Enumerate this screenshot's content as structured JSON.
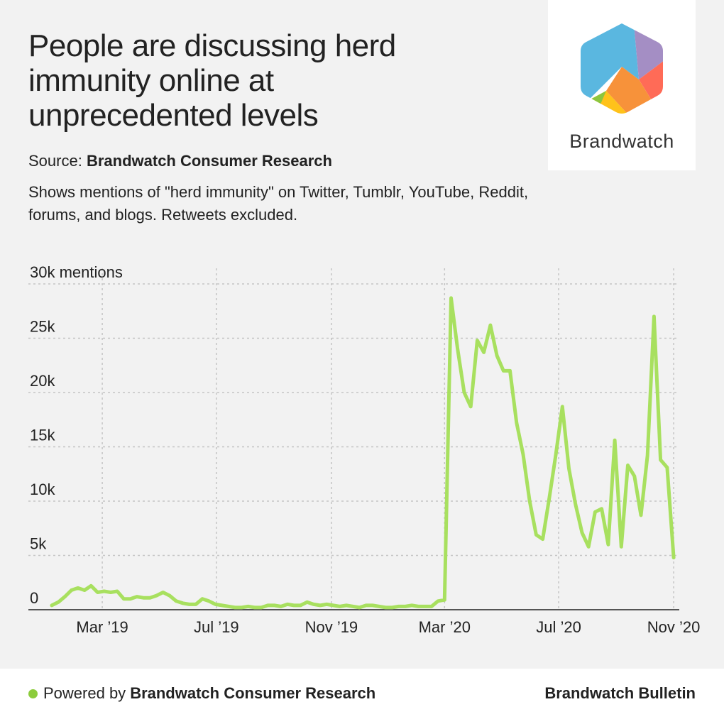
{
  "header": {
    "title": "People are discussing herd immunity online at unprecedented levels",
    "source_label": "Source:",
    "source_name": "Brandwatch Consumer Research",
    "subtitle": "Shows mentions of \"herd immunity\" on Twitter, Tumblr, YouTube, Reddit, forums, and blogs. Retweets excluded."
  },
  "logo": {
    "name": "Brandwatch",
    "colors": [
      "#5ab7e0",
      "#a48ec4",
      "#ff6b57",
      "#f7923a",
      "#ffc21a",
      "#8cc63e"
    ]
  },
  "footer": {
    "powered_label": "Powered by",
    "powered_name": "Brandwatch Consumer Research",
    "right_label": "Brandwatch Bulletin",
    "dot_color": "#8ccc3c"
  },
  "chart_data": {
    "type": "line",
    "line_color": "#a8e05f",
    "y_unit_label": "30k mentions",
    "y_ticks": [
      {
        "value": 0,
        "label": "0"
      },
      {
        "value": 5000,
        "label": "5k"
      },
      {
        "value": 10000,
        "label": "10k"
      },
      {
        "value": 15000,
        "label": "15k"
      },
      {
        "value": 20000,
        "label": "20k"
      },
      {
        "value": 25000,
        "label": "25k"
      },
      {
        "value": 30000,
        "label": "30k"
      }
    ],
    "ylim": [
      0,
      30000
    ],
    "xlim": [
      "2018-12-12",
      "2020-11-07"
    ],
    "x_ticks": [
      {
        "date": "2019-03-01",
        "label": "Mar ’19"
      },
      {
        "date": "2019-07-01",
        "label": "Jul ’19"
      },
      {
        "date": "2019-11-01",
        "label": "Nov ’19"
      },
      {
        "date": "2020-03-01",
        "label": "Mar ’20"
      },
      {
        "date": "2020-07-01",
        "label": "Jul ’20"
      },
      {
        "date": "2020-11-01",
        "label": "Nov ’20"
      }
    ],
    "grid": true,
    "series": [
      {
        "points": [
          [
            "2019-01-06",
            400
          ],
          [
            "2019-01-13",
            700
          ],
          [
            "2019-01-20",
            1200
          ],
          [
            "2019-01-27",
            1800
          ],
          [
            "2019-02-03",
            2000
          ],
          [
            "2019-02-10",
            1800
          ],
          [
            "2019-02-17",
            2200
          ],
          [
            "2019-02-24",
            1600
          ],
          [
            "2019-03-03",
            1700
          ],
          [
            "2019-03-10",
            1600
          ],
          [
            "2019-03-17",
            1700
          ],
          [
            "2019-03-24",
            1000
          ],
          [
            "2019-03-31",
            1000
          ],
          [
            "2019-04-07",
            1200
          ],
          [
            "2019-04-14",
            1100
          ],
          [
            "2019-04-21",
            1100
          ],
          [
            "2019-04-28",
            1300
          ],
          [
            "2019-05-05",
            1600
          ],
          [
            "2019-05-12",
            1300
          ],
          [
            "2019-05-19",
            800
          ],
          [
            "2019-05-26",
            600
          ],
          [
            "2019-06-02",
            500
          ],
          [
            "2019-06-09",
            500
          ],
          [
            "2019-06-16",
            1000
          ],
          [
            "2019-06-23",
            800
          ],
          [
            "2019-06-30",
            500
          ],
          [
            "2019-07-07",
            400
          ],
          [
            "2019-07-14",
            300
          ],
          [
            "2019-07-21",
            200
          ],
          [
            "2019-07-28",
            200
          ],
          [
            "2019-08-04",
            300
          ],
          [
            "2019-08-11",
            200
          ],
          [
            "2019-08-18",
            200
          ],
          [
            "2019-08-25",
            400
          ],
          [
            "2019-09-01",
            400
          ],
          [
            "2019-09-08",
            300
          ],
          [
            "2019-09-15",
            500
          ],
          [
            "2019-09-22",
            400
          ],
          [
            "2019-09-29",
            400
          ],
          [
            "2019-10-06",
            700
          ],
          [
            "2019-10-13",
            500
          ],
          [
            "2019-10-20",
            400
          ],
          [
            "2019-10-27",
            500
          ],
          [
            "2019-11-03",
            400
          ],
          [
            "2019-11-10",
            300
          ],
          [
            "2019-11-17",
            400
          ],
          [
            "2019-11-24",
            300
          ],
          [
            "2019-12-01",
            200
          ],
          [
            "2019-12-08",
            400
          ],
          [
            "2019-12-15",
            400
          ],
          [
            "2019-12-22",
            300
          ],
          [
            "2019-12-29",
            200
          ],
          [
            "2020-01-05",
            200
          ],
          [
            "2020-01-12",
            300
          ],
          [
            "2020-01-19",
            300
          ],
          [
            "2020-01-26",
            400
          ],
          [
            "2020-02-02",
            300
          ],
          [
            "2020-02-09",
            300
          ],
          [
            "2020-02-16",
            300
          ],
          [
            "2020-02-23",
            800
          ],
          [
            "2020-03-01",
            900
          ],
          [
            "2020-03-08",
            28700
          ],
          [
            "2020-03-15",
            24000
          ],
          [
            "2020-03-22",
            20000
          ],
          [
            "2020-03-29",
            18700
          ],
          [
            "2020-04-05",
            24800
          ],
          [
            "2020-04-12",
            23700
          ],
          [
            "2020-04-19",
            26200
          ],
          [
            "2020-04-26",
            23400
          ],
          [
            "2020-05-03",
            22000
          ],
          [
            "2020-05-10",
            22000
          ],
          [
            "2020-05-17",
            17200
          ],
          [
            "2020-05-24",
            14300
          ],
          [
            "2020-05-31",
            10000
          ],
          [
            "2020-06-07",
            6900
          ],
          [
            "2020-06-14",
            6500
          ],
          [
            "2020-06-21",
            10300
          ],
          [
            "2020-06-28",
            14300
          ],
          [
            "2020-07-05",
            18700
          ],
          [
            "2020-07-12",
            13000
          ],
          [
            "2020-07-19",
            9700
          ],
          [
            "2020-07-26",
            7100
          ],
          [
            "2020-08-02",
            5800
          ],
          [
            "2020-08-09",
            9000
          ],
          [
            "2020-08-16",
            9300
          ],
          [
            "2020-08-23",
            6000
          ],
          [
            "2020-08-30",
            15600
          ],
          [
            "2020-09-06",
            5800
          ],
          [
            "2020-09-13",
            13300
          ],
          [
            "2020-09-20",
            12300
          ],
          [
            "2020-09-27",
            8700
          ],
          [
            "2020-10-04",
            14200
          ],
          [
            "2020-10-11",
            27000
          ],
          [
            "2020-10-18",
            13800
          ],
          [
            "2020-10-25",
            13100
          ],
          [
            "2020-11-01",
            4800
          ]
        ]
      }
    ]
  }
}
